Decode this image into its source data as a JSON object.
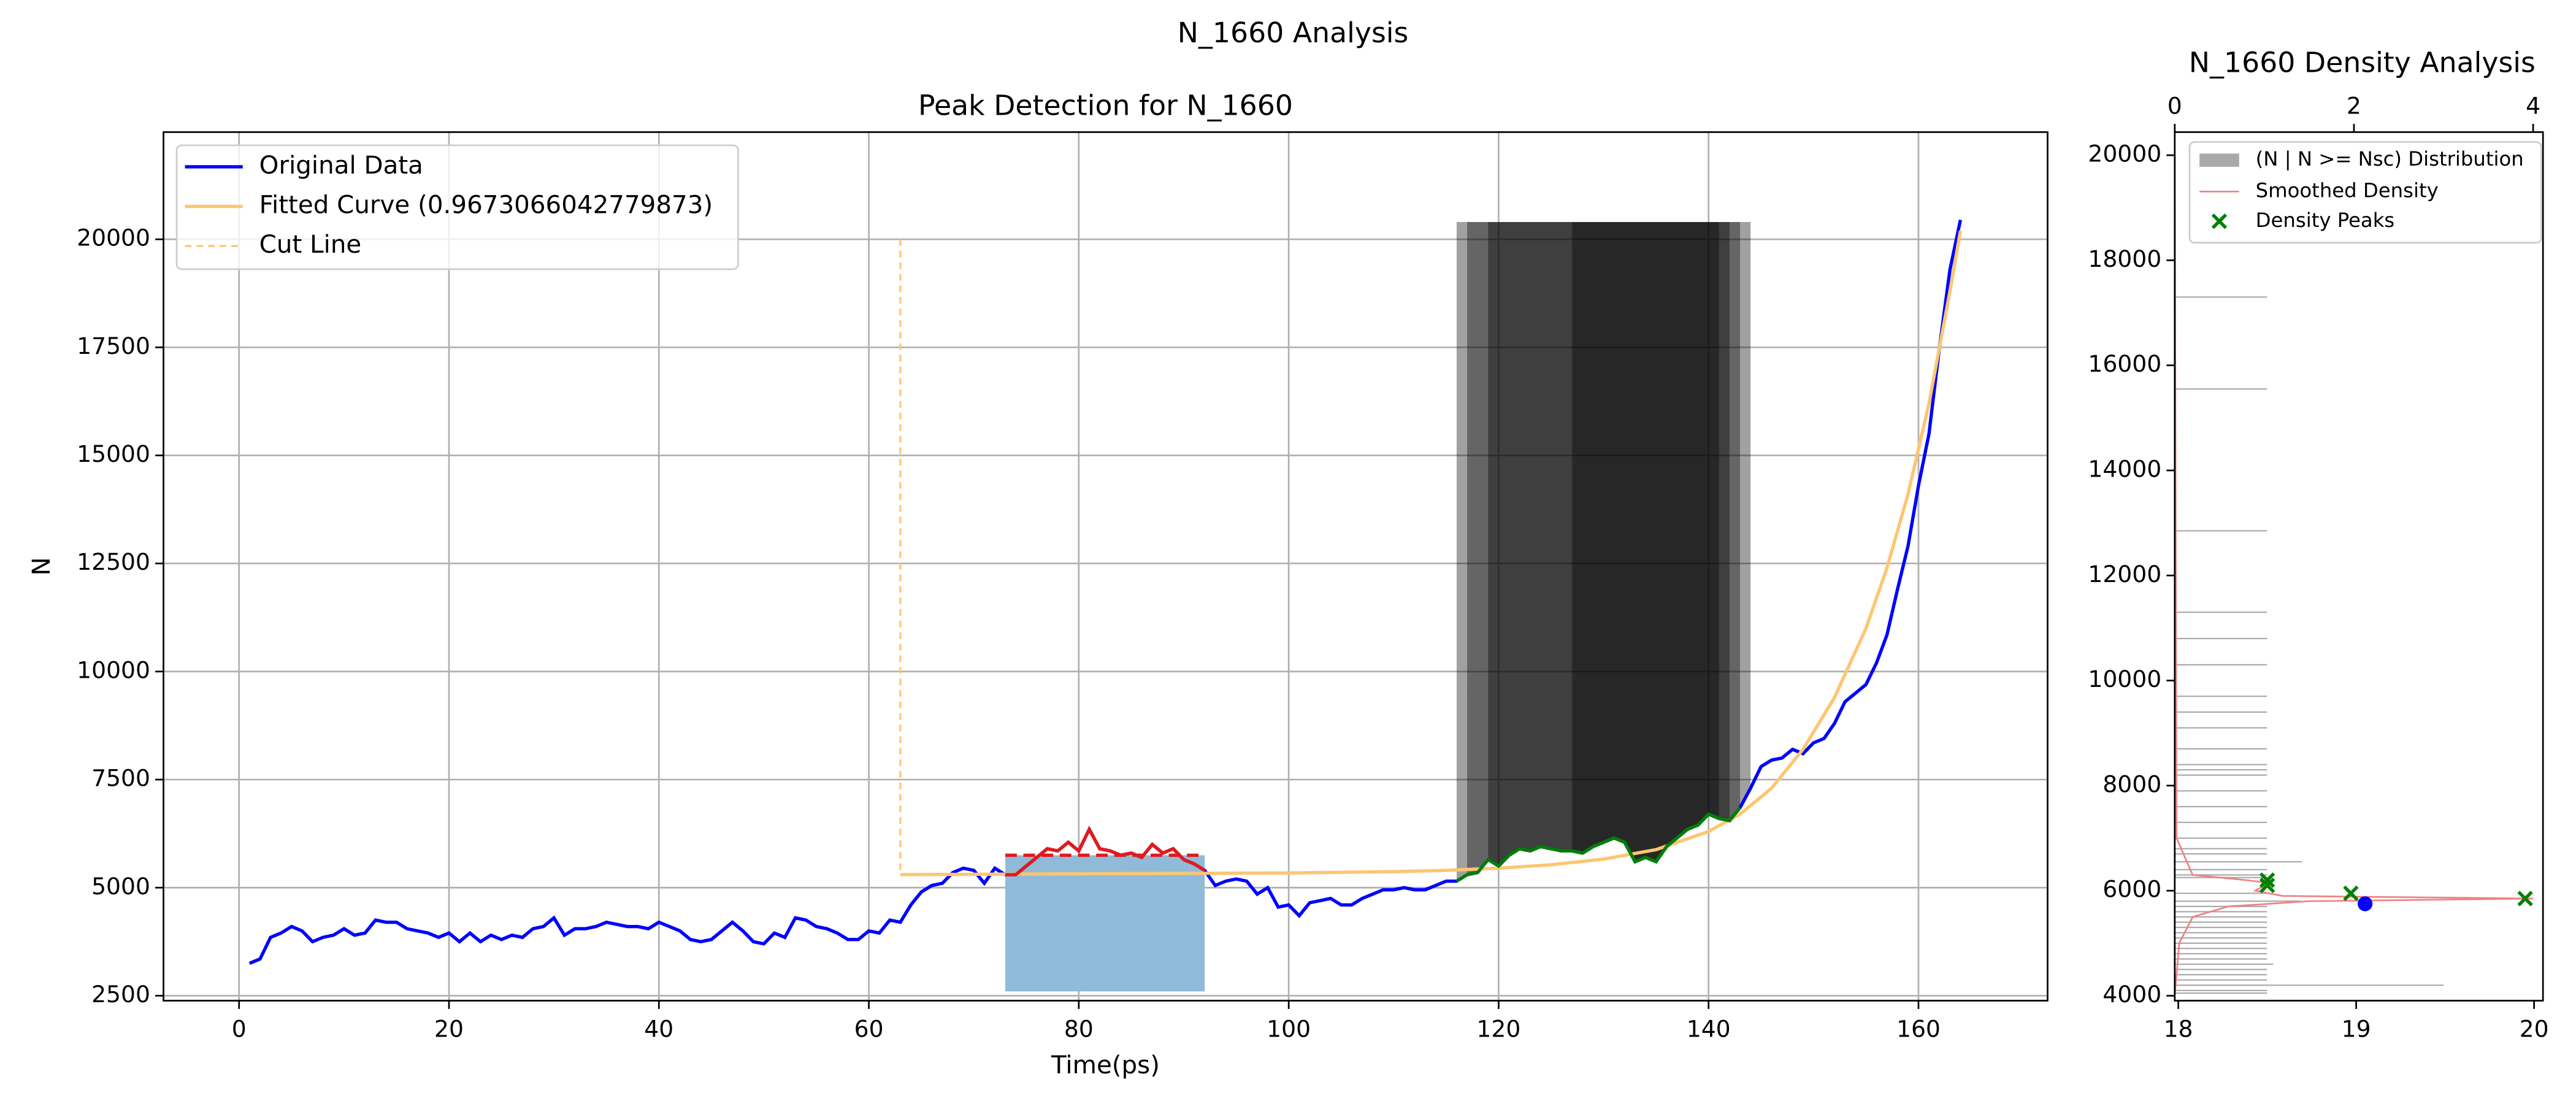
{
  "title": "N_1660 Analysis",
  "chart_data": [
    {
      "type": "line",
      "title": "Peak Detection for N_1660",
      "x_label": "Time(ps)",
      "y_label": "N",
      "xlim": [
        -7.2,
        172.3
      ],
      "ylim": [
        2385,
        22480
      ],
      "xticks": [
        0,
        20,
        40,
        60,
        80,
        100,
        120,
        140,
        160
      ],
      "yticks": [
        2500,
        5000,
        7500,
        10000,
        12500,
        15000,
        17500,
        20000
      ],
      "grid": true,
      "legend": "upper left",
      "series": [
        {
          "name": "Original Data",
          "color": "#0000ff",
          "x": [
            1,
            2,
            3,
            4,
            5,
            6,
            7,
            8,
            9,
            10,
            11,
            12,
            13,
            14,
            15,
            16,
            17,
            18,
            19,
            20,
            21,
            22,
            23,
            24,
            25,
            26,
            27,
            28,
            29,
            30,
            31,
            32,
            33,
            34,
            35,
            36,
            37,
            38,
            39,
            40,
            41,
            42,
            43,
            44,
            45,
            46,
            47,
            48,
            49,
            50,
            51,
            52,
            53,
            54,
            55,
            56,
            57,
            58,
            59,
            60,
            61,
            62,
            63,
            64,
            65,
            66,
            67,
            68,
            69,
            70,
            71,
            72,
            73,
            74,
            75,
            76,
            77,
            78,
            79,
            80,
            81,
            82,
            83,
            84,
            85,
            86,
            87,
            88,
            89,
            90,
            91,
            92,
            93,
            94,
            95,
            96,
            97,
            98,
            99,
            100,
            101,
            102,
            103,
            104,
            105,
            106,
            107,
            108,
            109,
            110,
            111,
            112,
            113,
            114,
            115,
            116,
            117,
            118,
            119,
            120,
            121,
            122,
            123,
            124,
            125,
            126,
            127,
            128,
            129,
            130,
            131,
            132,
            133,
            134,
            135,
            136,
            137,
            138,
            139,
            140,
            141,
            142,
            143,
            144,
            145,
            146,
            147,
            148,
            149,
            150,
            151,
            152,
            153,
            154,
            155,
            156,
            157,
            158,
            159,
            160,
            161,
            162,
            163,
            164
          ],
          "values": [
            3250,
            3350,
            3850,
            3950,
            4100,
            4000,
            3750,
            3850,
            3900,
            4050,
            3900,
            3950,
            4250,
            4200,
            4200,
            4050,
            4000,
            3950,
            3850,
            3950,
            3750,
            3950,
            3750,
            3900,
            3800,
            3900,
            3850,
            4050,
            4100,
            4300,
            3900,
            4050,
            4050,
            4100,
            4200,
            4150,
            4100,
            4100,
            4050,
            4200,
            4100,
            4000,
            3800,
            3750,
            3800,
            4000,
            4200,
            4000,
            3750,
            3700,
            3950,
            3850,
            4300,
            4250,
            4100,
            4050,
            3950,
            3800,
            3800,
            4000,
            3950,
            4250,
            4200,
            4600,
            4900,
            5050,
            5100,
            5350,
            5450,
            5400,
            5100,
            5450,
            5300,
            5300,
            5500,
            5700,
            5900,
            5850,
            6050,
            5850,
            6350,
            5900,
            5850,
            5750,
            5800,
            5700,
            6000,
            5800,
            5900,
            5650,
            5550,
            5400,
            5050,
            5150,
            5200,
            5150,
            4850,
            5000,
            4550,
            4600,
            4350,
            4650,
            4700,
            4750,
            4600,
            4600,
            4750,
            4850,
            4950,
            4950,
            5000,
            4950,
            4950,
            5050,
            5150,
            5150,
            5300,
            5350,
            5650,
            5500,
            5750,
            5900,
            5850,
            5950,
            5900,
            5850,
            5850,
            5800,
            5950,
            6050,
            6150,
            6050,
            5600,
            5700,
            5600,
            5950,
            6150,
            6350,
            6450,
            6700,
            6600,
            6550,
            6850,
            7300,
            7800,
            7950,
            8000,
            8200,
            8100,
            8350,
            8450,
            8800,
            9300,
            9500,
            9700,
            10200,
            10850,
            11900,
            12900,
            14300,
            15500,
            17500,
            19300,
            20450
          ]
        },
        {
          "name": "Fitted Curve (0.9673066042779873)",
          "color": "#fcc672",
          "x": [
            63,
            70,
            80,
            90,
            100,
            110,
            115,
            120,
            125,
            130,
            135,
            140,
            143,
            146,
            149,
            152,
            155,
            157,
            159,
            161,
            163,
            164
          ],
          "values": [
            5300,
            5310,
            5320,
            5330,
            5340,
            5370,
            5400,
            5450,
            5530,
            5660,
            5880,
            6300,
            6700,
            7300,
            8200,
            9400,
            11000,
            12400,
            14100,
            16200,
            18800,
            20200
          ]
        },
        {
          "name": "Cut Line",
          "color": "#fcc672",
          "dashed": true,
          "x": [
            63,
            63
          ],
          "values": [
            20000,
            5300
          ]
        }
      ],
      "segments": [
        {
          "color": "#e31a1c",
          "x": [
            73,
            74,
            75,
            76,
            77,
            78,
            79,
            80,
            81,
            82,
            83,
            84,
            85,
            86,
            87,
            88,
            89,
            90,
            91,
            92
          ],
          "values": [
            5300,
            5300,
            5500,
            5700,
            5900,
            5850,
            6050,
            5850,
            6350,
            5900,
            5850,
            5750,
            5800,
            5700,
            6000,
            5800,
            5900,
            5650,
            5550,
            5400
          ]
        },
        {
          "color": "#008000",
          "x": [
            116,
            117,
            118,
            119,
            120,
            121,
            122,
            123,
            124,
            125,
            126,
            127,
            128,
            129,
            130,
            131,
            132,
            133,
            134,
            135,
            136,
            137,
            138,
            139,
            140,
            141,
            142,
            143
          ],
          "values": [
            5150,
            5300,
            5350,
            5650,
            5500,
            5750,
            5900,
            5850,
            5950,
            5900,
            5850,
            5850,
            5800,
            5950,
            6050,
            6150,
            6050,
            5600,
            5700,
            5600,
            5950,
            6150,
            6350,
            6450,
            6700,
            6600,
            6550,
            6850
          ]
        }
      ],
      "peak_level": {
        "color": "#e31a1c",
        "x": [
          73,
          92
        ],
        "values": [
          5750,
          5750
        ]
      },
      "bands": [
        {
          "color": "#8fbbd9",
          "x": [
            73,
            92
          ],
          "values": [
            2600,
            5750
          ]
        }
      ],
      "shaded_regions": [
        {
          "color": "#000000",
          "opacity": 0.37,
          "x": [
            116,
            144
          ],
          "top": 20400
        },
        {
          "color": "#000000",
          "opacity": 0.37,
          "x": [
            117,
            143
          ],
          "top": 20400
        },
        {
          "color": "#000000",
          "opacity": 0.37,
          "x": [
            119,
            142
          ],
          "top": 20400
        },
        {
          "color": "#000000",
          "opacity": 0.37,
          "x": [
            127,
            141
          ],
          "top": 20400
        }
      ]
    },
    {
      "type": "density",
      "title": "N_1660 Density Analysis",
      "xlim": [
        17.98,
        20.05
      ],
      "xticks": [
        18,
        19,
        20
      ],
      "x2lim": [
        0,
        4.11
      ],
      "x2ticks": [
        0,
        2,
        4
      ],
      "ylim": [
        3906,
        20440
      ],
      "yticks": [
        4000,
        6000,
        8000,
        10000,
        12000,
        14000,
        16000,
        18000,
        20000
      ],
      "legend": "upper left",
      "histogram": {
        "name": "(N | N >= Nsc) Distribution",
        "color": "#a9a9a9",
        "y": [
          17300,
          15550,
          12850,
          11300,
          10800,
          10300,
          9700,
          9400,
          9100,
          8700,
          8400,
          8300,
          8200,
          7900,
          7600,
          7300,
          7000,
          6800,
          6700,
          6550,
          6400,
          6300,
          6250,
          5950,
          5800,
          5700,
          5600,
          5500,
          5400,
          5300,
          5200,
          5100,
          5000,
          4900,
          4800,
          4700,
          4600,
          4500,
          4400,
          4300,
          4200,
          4100,
          4050
        ],
        "counts": [
          1.03,
          1.03,
          1.03,
          1.03,
          1.03,
          1.03,
          1.03,
          1.03,
          1.03,
          1.03,
          1.03,
          1.03,
          1.03,
          1.03,
          1.03,
          1.03,
          1.03,
          1.03,
          1.03,
          1.42,
          1.03,
          1.03,
          1.03,
          1.03,
          1.4,
          1.03,
          1.03,
          1.03,
          1.03,
          1.03,
          1.03,
          1.03,
          1.03,
          1.03,
          1.03,
          1.03,
          1.1,
          1.03,
          1.03,
          1.03,
          3.0,
          1.03,
          1.03
        ]
      },
      "smoothed": {
        "name": "Smoothed Density",
        "color": "#f08080",
        "x": [
          0,
          0.05,
          0.2,
          0.6,
          1.5,
          4.0,
          1.2,
          0.9,
          1.0,
          1.05,
          0.8,
          0.2,
          0.02,
          0
        ],
        "y": [
          4000,
          5000,
          5500,
          5700,
          5800,
          5850,
          5900,
          6000,
          6100,
          6150,
          6200,
          6300,
          7000,
          20000
        ]
      },
      "peaks": {
        "name": "Density Peaks",
        "color": "#008000",
        "x": [
          18.5,
          18.5,
          18.97,
          19.95
        ],
        "y": [
          6200,
          6100,
          5950,
          5850
        ]
      },
      "point": {
        "color": "#0000ff",
        "x": [
          19.05
        ],
        "y": [
          5750
        ]
      }
    }
  ]
}
